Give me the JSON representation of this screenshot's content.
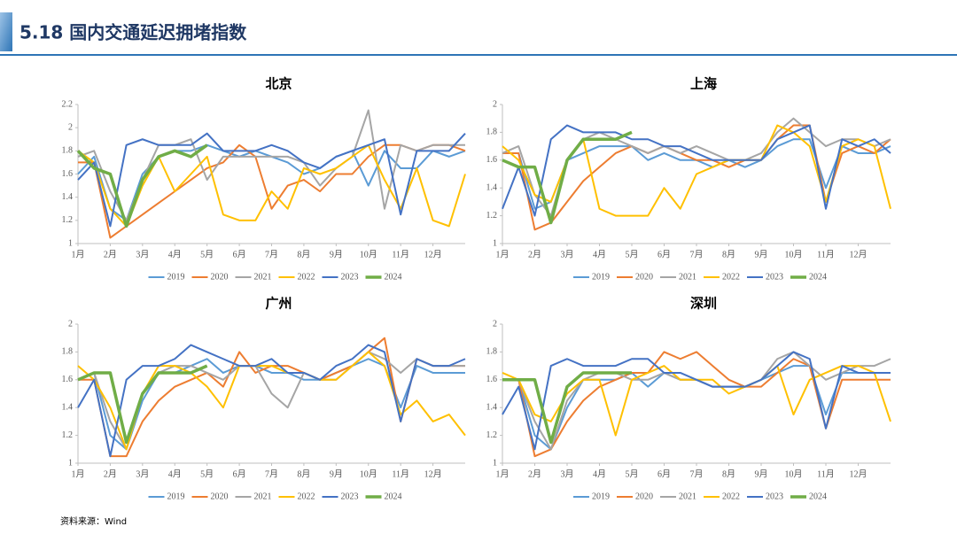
{
  "header": {
    "title": "5.18 国内交通延迟拥堵指数"
  },
  "source": "资料来源：Wind",
  "chart_data": [
    {
      "type": "line",
      "title": "北京",
      "x": [
        0,
        0.5,
        1,
        1.5,
        2,
        2.5,
        3,
        3.5,
        4,
        4.5,
        5,
        5.5,
        6,
        6.5,
        7,
        7.5,
        8,
        8.5,
        9,
        9.5,
        10,
        10.5,
        11,
        11.5,
        12
      ],
      "xlim": [
        0,
        12
      ],
      "xticks": [
        {
          "value": 0,
          "label": "1月"
        },
        {
          "value": 1,
          "label": "2月"
        },
        {
          "value": 2,
          "label": "3月"
        },
        {
          "value": 3,
          "label": "4月"
        },
        {
          "value": 4,
          "label": "5月"
        },
        {
          "value": 5,
          "label": "6月"
        },
        {
          "value": 6,
          "label": "7月"
        },
        {
          "value": 7,
          "label": "8月"
        },
        {
          "value": 8,
          "label": "9月"
        },
        {
          "value": 9,
          "label": "10月"
        },
        {
          "value": 10,
          "label": "11月"
        },
        {
          "value": 11,
          "label": "12月"
        }
      ],
      "ylim": [
        1,
        2.2
      ],
      "yticks": [
        1,
        1.2,
        1.4,
        1.6,
        1.8,
        2,
        2.2
      ],
      "series": [
        {
          "name": "2019",
          "color": "#5b9bd5",
          "linewidth": 2,
          "values": [
            1.6,
            1.75,
            1.3,
            1.2,
            1.6,
            1.75,
            1.8,
            1.8,
            1.85,
            1.8,
            1.75,
            1.8,
            1.75,
            1.7,
            1.6,
            1.65,
            1.75,
            1.8,
            1.5,
            1.8,
            1.65,
            1.65,
            1.8,
            1.75,
            1.8
          ]
        },
        {
          "name": "2020",
          "color": "#ed7d31",
          "linewidth": 2,
          "values": [
            1.7,
            1.7,
            1.05,
            1.15,
            1.25,
            1.35,
            1.45,
            1.55,
            1.65,
            1.7,
            1.85,
            1.75,
            1.3,
            1.5,
            1.55,
            1.45,
            1.6,
            1.6,
            1.75,
            1.85,
            1.85,
            1.8,
            1.85,
            1.85,
            1.8
          ]
        },
        {
          "name": "2021",
          "color": "#a5a5a5",
          "linewidth": 2,
          "values": [
            1.75,
            1.8,
            1.45,
            1.2,
            1.55,
            1.85,
            1.85,
            1.9,
            1.55,
            1.75,
            1.75,
            1.75,
            1.75,
            1.75,
            1.7,
            1.5,
            1.65,
            1.75,
            2.15,
            1.3,
            1.85,
            1.8,
            1.85,
            1.85,
            1.85
          ]
        },
        {
          "name": "2022",
          "color": "#ffc000",
          "linewidth": 2,
          "values": [
            1.8,
            1.7,
            1.3,
            1.15,
            1.5,
            1.75,
            1.45,
            1.6,
            1.75,
            1.25,
            1.2,
            1.2,
            1.45,
            1.3,
            1.65,
            1.6,
            1.65,
            1.75,
            1.85,
            1.55,
            1.3,
            1.65,
            1.2,
            1.15,
            1.6
          ]
        },
        {
          "name": "2023",
          "color": "#4472c4",
          "linewidth": 2,
          "values": [
            1.55,
            1.7,
            1.15,
            1.85,
            1.9,
            1.85,
            1.85,
            1.85,
            1.95,
            1.8,
            1.8,
            1.8,
            1.85,
            1.8,
            1.7,
            1.65,
            1.75,
            1.8,
            1.85,
            1.9,
            1.25,
            1.8,
            1.8,
            1.8,
            1.95
          ]
        },
        {
          "name": "2024",
          "color": "#70ad47",
          "linewidth": 3.5,
          "values": [
            1.8,
            1.65,
            1.6,
            1.15,
            1.55,
            1.75,
            1.8,
            1.75,
            1.85,
            null,
            null,
            null,
            null,
            null,
            null,
            null,
            null,
            null,
            null,
            null,
            null,
            null,
            null,
            null,
            null
          ]
        }
      ]
    },
    {
      "type": "line",
      "title": "上海",
      "x": [
        0,
        0.5,
        1,
        1.5,
        2,
        2.5,
        3,
        3.5,
        4,
        4.5,
        5,
        5.5,
        6,
        6.5,
        7,
        7.5,
        8,
        8.5,
        9,
        9.5,
        10,
        10.5,
        11,
        11.5,
        12
      ],
      "xlim": [
        0,
        12
      ],
      "xticks": [
        {
          "value": 0,
          "label": "1月"
        },
        {
          "value": 1,
          "label": "2月"
        },
        {
          "value": 2,
          "label": "3月"
        },
        {
          "value": 3,
          "label": "4月"
        },
        {
          "value": 4,
          "label": "5月"
        },
        {
          "value": 5,
          "label": "6月"
        },
        {
          "value": 6,
          "label": "7月"
        },
        {
          "value": 7,
          "label": "8月"
        },
        {
          "value": 8,
          "label": "9月"
        },
        {
          "value": 9,
          "label": "10月"
        },
        {
          "value": 10,
          "label": "11月"
        },
        {
          "value": 11,
          "label": "12月"
        }
      ],
      "ylim": [
        1,
        2
      ],
      "yticks": [
        1,
        1.2,
        1.4,
        1.6,
        1.8,
        2
      ],
      "series": [
        {
          "name": "2019",
          "color": "#5b9bd5",
          "linewidth": 2,
          "values": [
            1.65,
            1.65,
            1.25,
            1.3,
            1.6,
            1.65,
            1.7,
            1.7,
            1.7,
            1.6,
            1.65,
            1.6,
            1.6,
            1.55,
            1.6,
            1.55,
            1.6,
            1.7,
            1.75,
            1.75,
            1.4,
            1.7,
            1.65,
            1.65,
            1.7
          ]
        },
        {
          "name": "2020",
          "color": "#ed7d31",
          "linewidth": 2,
          "values": [
            1.65,
            1.65,
            1.1,
            1.15,
            1.3,
            1.45,
            1.55,
            1.65,
            1.7,
            1.65,
            1.7,
            1.65,
            1.6,
            1.6,
            1.55,
            1.6,
            1.6,
            1.75,
            1.85,
            1.85,
            1.3,
            1.65,
            1.7,
            1.65,
            1.75
          ]
        },
        {
          "name": "2021",
          "color": "#a5a5a5",
          "linewidth": 2,
          "values": [
            1.65,
            1.7,
            1.35,
            1.2,
            1.6,
            1.75,
            1.8,
            1.75,
            1.7,
            1.65,
            1.7,
            1.65,
            1.7,
            1.65,
            1.6,
            1.6,
            1.65,
            1.8,
            1.9,
            1.8,
            1.7,
            1.75,
            1.75,
            1.7,
            1.75
          ]
        },
        {
          "name": "2022",
          "color": "#ffc000",
          "linewidth": 2,
          "values": [
            1.7,
            1.6,
            1.35,
            1.3,
            1.6,
            1.75,
            1.25,
            1.2,
            1.2,
            1.2,
            1.4,
            1.25,
            1.5,
            1.55,
            1.6,
            1.6,
            1.6,
            1.85,
            1.8,
            1.7,
            1.3,
            1.7,
            1.75,
            1.7,
            1.25
          ]
        },
        {
          "name": "2023",
          "color": "#4472c4",
          "linewidth": 2,
          "values": [
            1.25,
            1.55,
            1.2,
            1.75,
            1.85,
            1.8,
            1.8,
            1.8,
            1.75,
            1.75,
            1.7,
            1.7,
            1.65,
            1.6,
            1.6,
            1.6,
            1.6,
            1.75,
            1.8,
            1.85,
            1.25,
            1.75,
            1.7,
            1.75,
            1.65
          ]
        },
        {
          "name": "2024",
          "color": "#70ad47",
          "linewidth": 3.5,
          "values": [
            1.6,
            1.55,
            1.55,
            1.15,
            1.6,
            1.75,
            1.75,
            1.75,
            1.8,
            null,
            null,
            null,
            null,
            null,
            null,
            null,
            null,
            null,
            null,
            null,
            null,
            null,
            null,
            null,
            null
          ]
        }
      ]
    },
    {
      "type": "line",
      "title": "广州",
      "x": [
        0,
        0.5,
        1,
        1.5,
        2,
        2.5,
        3,
        3.5,
        4,
        4.5,
        5,
        5.5,
        6,
        6.5,
        7,
        7.5,
        8,
        8.5,
        9,
        9.5,
        10,
        10.5,
        11,
        11.5,
        12
      ],
      "xlim": [
        0,
        12
      ],
      "xticks": [
        {
          "value": 0,
          "label": "1月"
        },
        {
          "value": 1,
          "label": "2月"
        },
        {
          "value": 2,
          "label": "3月"
        },
        {
          "value": 3,
          "label": "4月"
        },
        {
          "value": 4,
          "label": "5月"
        },
        {
          "value": 5,
          "label": "6月"
        },
        {
          "value": 6,
          "label": "7月"
        },
        {
          "value": 7,
          "label": "8月"
        },
        {
          "value": 8,
          "label": "9月"
        },
        {
          "value": 9,
          "label": "10月"
        },
        {
          "value": 10,
          "label": "11月"
        },
        {
          "value": 11,
          "label": "12月"
        }
      ],
      "ylim": [
        1,
        2
      ],
      "yticks": [
        1,
        1.2,
        1.4,
        1.6,
        1.8,
        2
      ],
      "series": [
        {
          "name": "2019",
          "color": "#5b9bd5",
          "linewidth": 2,
          "values": [
            1.6,
            1.65,
            1.2,
            1.1,
            1.45,
            1.65,
            1.65,
            1.7,
            1.75,
            1.65,
            1.7,
            1.7,
            1.65,
            1.65,
            1.6,
            1.6,
            1.65,
            1.7,
            1.75,
            1.7,
            1.4,
            1.7,
            1.65,
            1.65,
            1.65
          ]
        },
        {
          "name": "2020",
          "color": "#ed7d31",
          "linewidth": 2,
          "values": [
            1.6,
            1.6,
            1.05,
            1.05,
            1.3,
            1.45,
            1.55,
            1.6,
            1.65,
            1.55,
            1.8,
            1.65,
            1.7,
            1.7,
            1.65,
            1.6,
            1.65,
            1.7,
            1.8,
            1.9,
            1.3,
            1.75,
            1.7,
            1.7,
            1.7
          ]
        },
        {
          "name": "2021",
          "color": "#a5a5a5",
          "linewidth": 2,
          "values": [
            1.6,
            1.65,
            1.3,
            1.1,
            1.5,
            1.65,
            1.7,
            1.7,
            1.65,
            1.6,
            1.7,
            1.7,
            1.5,
            1.4,
            1.65,
            1.6,
            1.6,
            1.7,
            1.8,
            1.75,
            1.65,
            1.75,
            1.7,
            1.7,
            1.7
          ]
        },
        {
          "name": "2022",
          "color": "#ffc000",
          "linewidth": 2,
          "values": [
            1.7,
            1.6,
            1.4,
            1.1,
            1.5,
            1.7,
            1.7,
            1.65,
            1.55,
            1.4,
            1.7,
            1.7,
            1.7,
            1.65,
            1.65,
            1.6,
            1.6,
            1.7,
            1.8,
            1.7,
            1.35,
            1.45,
            1.3,
            1.35,
            1.2
          ]
        },
        {
          "name": "2023",
          "color": "#4472c4",
          "linewidth": 2,
          "values": [
            1.4,
            1.6,
            1.05,
            1.6,
            1.7,
            1.7,
            1.75,
            1.85,
            1.8,
            1.75,
            1.7,
            1.7,
            1.75,
            1.65,
            1.65,
            1.6,
            1.7,
            1.75,
            1.85,
            1.8,
            1.3,
            1.75,
            1.7,
            1.7,
            1.75
          ]
        },
        {
          "name": "2024",
          "color": "#70ad47",
          "linewidth": 3.5,
          "values": [
            1.6,
            1.65,
            1.65,
            1.15,
            1.5,
            1.65,
            1.65,
            1.65,
            1.7,
            null,
            null,
            null,
            null,
            null,
            null,
            null,
            null,
            null,
            null,
            null,
            null,
            null,
            null,
            null,
            null
          ]
        }
      ]
    },
    {
      "type": "line",
      "title": "深圳",
      "x": [
        0,
        0.5,
        1,
        1.5,
        2,
        2.5,
        3,
        3.5,
        4,
        4.5,
        5,
        5.5,
        6,
        6.5,
        7,
        7.5,
        8,
        8.5,
        9,
        9.5,
        10,
        10.5,
        11,
        11.5,
        12
      ],
      "xlim": [
        0,
        12
      ],
      "xticks": [
        {
          "value": 0,
          "label": "1月"
        },
        {
          "value": 1,
          "label": "2月"
        },
        {
          "value": 2,
          "label": "3月"
        },
        {
          "value": 3,
          "label": "4月"
        },
        {
          "value": 4,
          "label": "5月"
        },
        {
          "value": 5,
          "label": "6月"
        },
        {
          "value": 6,
          "label": "7月"
        },
        {
          "value": 7,
          "label": "8月"
        },
        {
          "value": 8,
          "label": "9月"
        },
        {
          "value": 9,
          "label": "10月"
        },
        {
          "value": 10,
          "label": "11月"
        },
        {
          "value": 11,
          "label": "12月"
        }
      ],
      "ylim": [
        1,
        2
      ],
      "yticks": [
        1,
        1.2,
        1.4,
        1.6,
        1.8,
        2
      ],
      "series": [
        {
          "name": "2019",
          "color": "#5b9bd5",
          "linewidth": 2,
          "values": [
            1.6,
            1.6,
            1.2,
            1.1,
            1.4,
            1.6,
            1.6,
            1.6,
            1.65,
            1.55,
            1.65,
            1.6,
            1.6,
            1.55,
            1.55,
            1.55,
            1.6,
            1.65,
            1.7,
            1.7,
            1.35,
            1.65,
            1.65,
            1.65,
            1.65
          ]
        },
        {
          "name": "2020",
          "color": "#ed7d31",
          "linewidth": 2,
          "values": [
            1.6,
            1.6,
            1.05,
            1.1,
            1.3,
            1.45,
            1.55,
            1.6,
            1.65,
            1.65,
            1.8,
            1.75,
            1.8,
            1.7,
            1.6,
            1.55,
            1.55,
            1.65,
            1.75,
            1.7,
            1.25,
            1.6,
            1.6,
            1.6,
            1.6
          ]
        },
        {
          "name": "2021",
          "color": "#a5a5a5",
          "linewidth": 2,
          "values": [
            1.6,
            1.6,
            1.3,
            1.1,
            1.45,
            1.6,
            1.65,
            1.65,
            1.6,
            1.6,
            1.65,
            1.6,
            1.6,
            1.55,
            1.55,
            1.55,
            1.6,
            1.75,
            1.8,
            1.7,
            1.6,
            1.65,
            1.7,
            1.7,
            1.75
          ]
        },
        {
          "name": "2022",
          "color": "#ffc000",
          "linewidth": 2,
          "values": [
            1.65,
            1.6,
            1.35,
            1.3,
            1.5,
            1.6,
            1.6,
            1.2,
            1.6,
            1.65,
            1.7,
            1.6,
            1.6,
            1.6,
            1.5,
            1.55,
            1.6,
            1.7,
            1.35,
            1.6,
            1.65,
            1.7,
            1.7,
            1.65,
            1.3
          ]
        },
        {
          "name": "2023",
          "color": "#4472c4",
          "linewidth": 2,
          "values": [
            1.35,
            1.55,
            1.1,
            1.7,
            1.75,
            1.7,
            1.7,
            1.7,
            1.75,
            1.75,
            1.65,
            1.65,
            1.6,
            1.55,
            1.55,
            1.55,
            1.6,
            1.7,
            1.8,
            1.75,
            1.25,
            1.7,
            1.65,
            1.65,
            1.65
          ]
        },
        {
          "name": "2024",
          "color": "#70ad47",
          "linewidth": 3.5,
          "values": [
            1.6,
            1.6,
            1.6,
            1.15,
            1.55,
            1.65,
            1.65,
            1.65,
            1.65,
            null,
            null,
            null,
            null,
            null,
            null,
            null,
            null,
            null,
            null,
            null,
            null,
            null,
            null,
            null,
            null
          ]
        }
      ]
    }
  ]
}
